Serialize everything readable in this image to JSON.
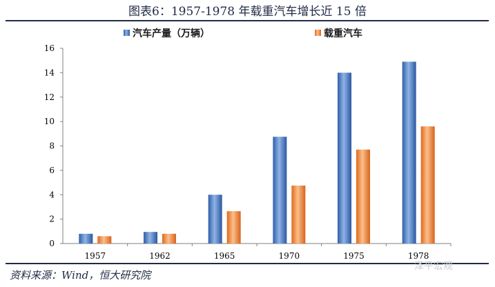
{
  "title": "图表6：1957-1978 年载重汽车增长近 15 倍",
  "source": "资料来源：Wind，恒大研究院",
  "watermark": "泽平宏观",
  "colors": {
    "series_0": "#4a7bc4",
    "series_1": "#f08a3c",
    "rule": "#1f2a44"
  },
  "chart_data": {
    "type": "bar",
    "title": "图表6：1957-1978 年载重汽车增长近 15 倍",
    "xlabel": "",
    "ylabel": "",
    "categories": [
      "1957",
      "1962",
      "1965",
      "1970",
      "1975",
      "1978"
    ],
    "series": [
      {
        "name": "汽车产量（万辆）",
        "values": [
          0.8,
          0.95,
          4.0,
          8.75,
          14.0,
          14.9
        ]
      },
      {
        "name": "载重汽车",
        "values": [
          0.6,
          0.8,
          2.65,
          4.75,
          7.7,
          9.6
        ]
      }
    ],
    "ylim": [
      0,
      16
    ],
    "yticks": [
      0,
      2,
      4,
      6,
      8,
      10,
      12,
      14,
      16
    ],
    "grid": false,
    "legend_position": "top"
  }
}
